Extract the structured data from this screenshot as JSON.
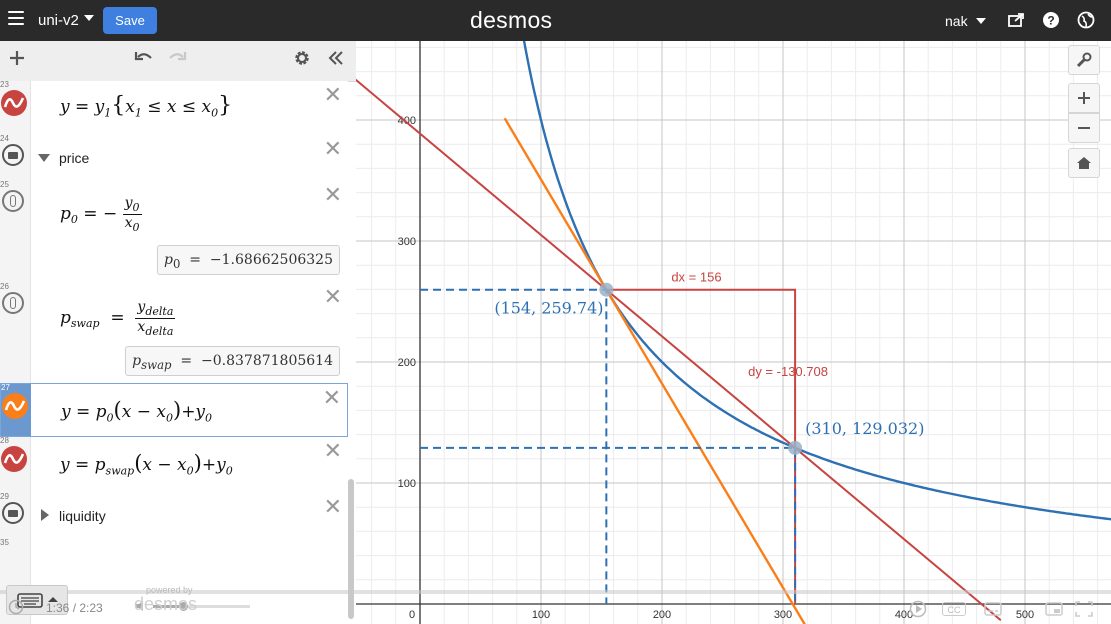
{
  "topbar": {
    "graph_title": "uni-v2",
    "save_label": "Save",
    "brand": "desmos",
    "user": "nak"
  },
  "expressions": [
    {
      "num": "23",
      "kind": "curve",
      "color": "#c74440"
    },
    {
      "num": "24",
      "kind": "folder",
      "label": "price",
      "expanded": true
    },
    {
      "num": "25",
      "kind": "hidden",
      "eval_value": "−1.68662506325"
    },
    {
      "num": "26",
      "kind": "hidden",
      "eval_value": "−0.837871805614"
    },
    {
      "num": "27",
      "kind": "curve",
      "color": "#fa7e19",
      "selected": true
    },
    {
      "num": "28",
      "kind": "curve",
      "color": "#c74440"
    },
    {
      "num": "29",
      "kind": "folder",
      "label": "liquidity",
      "expanded": false
    },
    {
      "num": "35",
      "kind": "empty"
    }
  ],
  "graph": {
    "x_ticks": [
      "0",
      "100",
      "200",
      "300",
      "400",
      "500"
    ],
    "y_ticks": [
      "100",
      "200",
      "300",
      "400"
    ],
    "annotations": {
      "dx": "dx = 156",
      "dy": "dy = -130.708",
      "point_a": "(154, 259.74)",
      "point_b": "(310, 129.032)"
    },
    "colors": {
      "blue": "#2d70b3",
      "orange": "#fa7e19",
      "red": "#c74440"
    }
  },
  "video": {
    "timestamp": "1:36 / 2:23",
    "powered_by": "powered by",
    "powered_brand": "desmos"
  }
}
